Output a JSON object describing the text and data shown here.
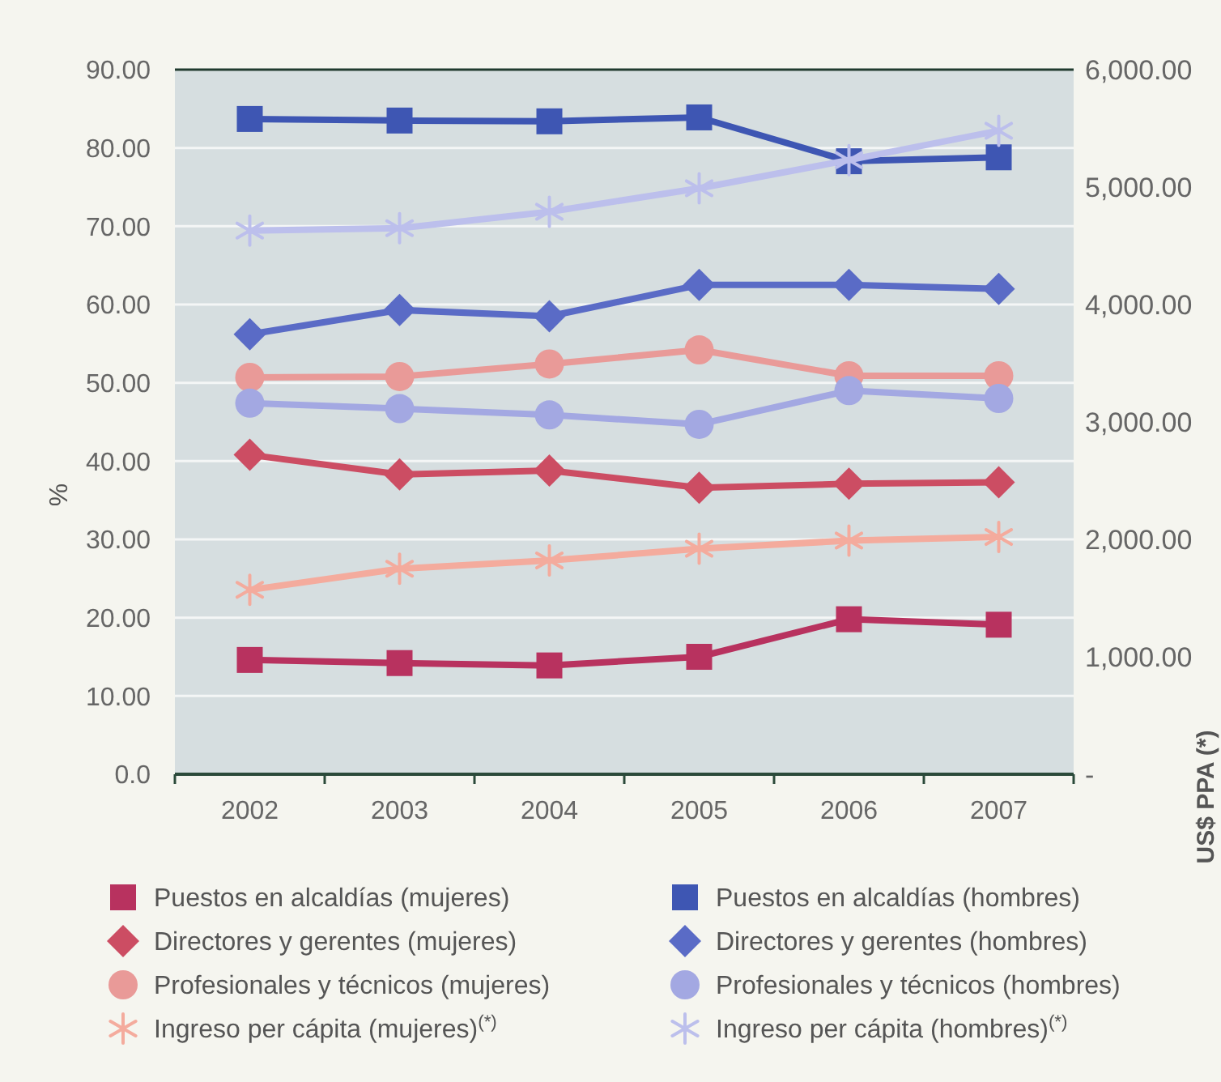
{
  "chart_data": {
    "type": "line",
    "ylabel": "%",
    "y2label": "US$ PPA (*)",
    "categories": [
      "2002",
      "2003",
      "2004",
      "2005",
      "2006",
      "2007"
    ],
    "ylim": [
      0,
      90
    ],
    "yticks": [
      {
        "value": 0,
        "label": "0.0"
      },
      {
        "value": 10,
        "label": "10.00"
      },
      {
        "value": 20,
        "label": "20.00"
      },
      {
        "value": 30,
        "label": "30.00"
      },
      {
        "value": 40,
        "label": "40.00"
      },
      {
        "value": 50,
        "label": "50.00"
      },
      {
        "value": 60,
        "label": "60.00"
      },
      {
        "value": 70,
        "label": "70.00"
      },
      {
        "value": 80,
        "label": "80.00"
      },
      {
        "value": 90,
        "label": "90.00"
      }
    ],
    "y2lim": [
      0,
      6000
    ],
    "y2ticks": [
      {
        "value": 0,
        "label": "-"
      },
      {
        "value": 1000,
        "label": "1,000.00"
      },
      {
        "value": 2000,
        "label": "2,000.00"
      },
      {
        "value": 3000,
        "label": "3,000.00"
      },
      {
        "value": 4000,
        "label": "4,000.00"
      },
      {
        "value": 5000,
        "label": "5,000.00"
      },
      {
        "value": 6000,
        "label": "6,000.00"
      }
    ],
    "grid": "y",
    "legend": "bottom",
    "line_style": "solid",
    "series": [
      {
        "name": "Puestos en alcaldías (mujeres)",
        "color": "#b8325f",
        "marker": "square",
        "values": [
          14.6,
          14.2,
          13.9,
          15.0,
          19.8,
          19.1
        ]
      },
      {
        "name": "Directores y gerentes (mujeres)",
        "color": "#cc4d63",
        "marker": "diamond",
        "values": [
          40.8,
          38.3,
          38.8,
          36.6,
          37.1,
          37.3
        ]
      },
      {
        "name": "Profesionales y técnicos (mujeres)",
        "color": "#e99a98",
        "marker": "circle",
        "values": [
          50.7,
          50.8,
          52.4,
          54.2,
          50.9,
          50.9
        ]
      },
      {
        "name": "Ingreso per cápita (mujeres)$^{(*)}$",
        "color": "#f4ab9d",
        "marker": "cross",
        "axis": "y2",
        "values": [
          1570,
          1750,
          1820,
          1920,
          1990,
          2020
        ]
      },
      {
        "name": "Puestos en alcaldías (hombres)",
        "color": "#3e56b3",
        "marker": "square",
        "values": [
          83.7,
          83.5,
          83.4,
          83.9,
          78.3,
          78.8
        ]
      },
      {
        "name": "Directores y gerentes (hombres)",
        "color": "#5a6bc6",
        "marker": "diamond",
        "values": [
          56.2,
          59.3,
          58.5,
          62.5,
          62.5,
          62.0
        ]
      },
      {
        "name": "Profesionales y técnicos (hombres)",
        "color": "#a3a8e2",
        "marker": "circle",
        "values": [
          47.4,
          46.7,
          45.9,
          44.7,
          49.0,
          48.0
        ]
      },
      {
        "name": "Ingreso per cápita (hombres)$^{(*)}$",
        "color": "#bcbfec",
        "marker": "cross",
        "axis": "y2",
        "values": [
          4630,
          4650,
          4790,
          4990,
          5230,
          5480
        ]
      }
    ]
  }
}
